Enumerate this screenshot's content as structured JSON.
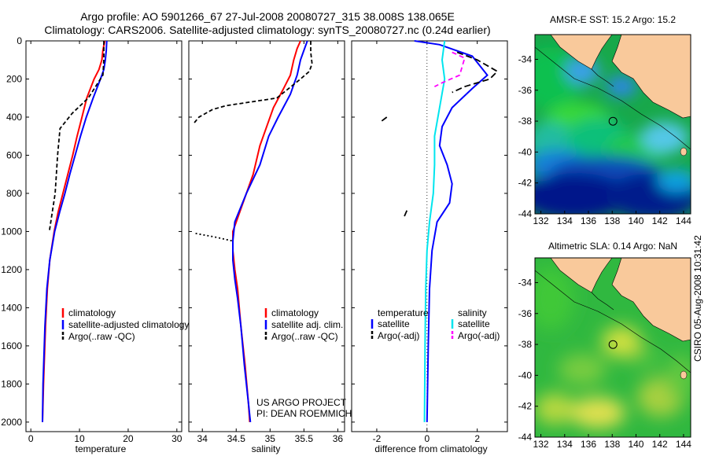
{
  "header": {
    "line1": "Argo profile: AO 5901266_67 27-Jul-2008 20080727_315 38.008S 138.065E",
    "line2": "Climatology: CARS2006. Satellite-adjusted climatology: synTS_20080727.nc (0.24d earlier)"
  },
  "side_label": "CSIRO 05-Aug-2008 10:31:42",
  "colors": {
    "climatology": "#ff0000",
    "satellite": "#0000ff",
    "satellite_diff": "#00e5ee",
    "argo": "#000000",
    "argo_adj": "#ff00ff",
    "land": "#f9c99b"
  },
  "chart_data": [
    {
      "type": "line",
      "xlabel": "temperature",
      "xlim": [
        -1,
        31
      ],
      "ylim": [
        0,
        2050
      ],
      "xticks": [
        0,
        10,
        20,
        30
      ],
      "yticks": [
        0,
        200,
        400,
        600,
        800,
        1000,
        1200,
        1400,
        1600,
        1800,
        2000
      ],
      "legend_position": "lower-right",
      "series": [
        {
          "name": "climatology",
          "color": "#ff0000",
          "dash": "",
          "points": [
            [
              15.2,
              0
            ],
            [
              14.8,
              50
            ],
            [
              14.6,
              100
            ],
            [
              14.0,
              150
            ],
            [
              13.0,
              200
            ],
            [
              11.5,
              300
            ],
            [
              10.5,
              400
            ],
            [
              9.5,
              500
            ],
            [
              8.6,
              600
            ],
            [
              7.6,
              700
            ],
            [
              6.6,
              800
            ],
            [
              5.6,
              900
            ],
            [
              4.8,
              1000
            ],
            [
              3.9,
              1150
            ],
            [
              3.4,
              1300
            ],
            [
              3.0,
              1500
            ],
            [
              2.6,
              1800
            ],
            [
              2.4,
              2000
            ]
          ]
        },
        {
          "name": "satellite-adjusted climatology",
          "color": "#0000ff",
          "dash": "",
          "points": [
            [
              15.6,
              0
            ],
            [
              15.5,
              50
            ],
            [
              15.3,
              100
            ],
            [
              15.0,
              150
            ],
            [
              14.3,
              200
            ],
            [
              12.8,
              300
            ],
            [
              11.4,
              400
            ],
            [
              10.2,
              500
            ],
            [
              9.1,
              600
            ],
            [
              8.0,
              700
            ],
            [
              7.0,
              800
            ],
            [
              5.9,
              900
            ],
            [
              4.9,
              1000
            ],
            [
              3.9,
              1150
            ],
            [
              3.3,
              1300
            ],
            [
              2.9,
              1500
            ],
            [
              2.5,
              1800
            ],
            [
              2.4,
              2000
            ]
          ]
        },
        {
          "name": "Argo(..raw -QC)",
          "color": "#000000",
          "dash": "5,3",
          "points": [
            [
              15.0,
              0
            ],
            [
              15.0,
              100
            ],
            [
              14.8,
              180
            ],
            [
              13.8,
              220
            ],
            [
              11.8,
              300
            ],
            [
              8.5,
              380
            ],
            [
              6.0,
              460
            ],
            [
              5.5,
              600
            ],
            [
              5.0,
              800
            ],
            [
              4.4,
              900
            ],
            [
              3.8,
              1000
            ]
          ]
        }
      ],
      "legend": [
        "climatology",
        "satellite-adjusted climatology",
        "Argo(..raw -QC)"
      ]
    },
    {
      "type": "line",
      "xlabel": "salinity",
      "xlim": [
        33.8,
        36.1
      ],
      "ylim": [
        0,
        2050
      ],
      "xticks": [
        34,
        34.5,
        35,
        35.5,
        36
      ],
      "yticks": [],
      "legend_position": "lower-right",
      "annotation_lines": [
        "US ARGO PROJECT",
        "PI: DEAN ROEMMICH"
      ],
      "series": [
        {
          "name": "climatology",
          "color": "#ff0000",
          "dash": "",
          "points": [
            [
              35.45,
              0
            ],
            [
              35.4,
              40
            ],
            [
              35.35,
              100
            ],
            [
              35.3,
              180
            ],
            [
              35.2,
              250
            ],
            [
              35.05,
              350
            ],
            [
              34.95,
              450
            ],
            [
              34.85,
              550
            ],
            [
              34.75,
              700
            ],
            [
              34.6,
              850
            ],
            [
              34.5,
              950
            ],
            [
              34.45,
              1000
            ],
            [
              34.45,
              1100
            ],
            [
              34.48,
              1200
            ],
            [
              34.52,
              1300
            ],
            [
              34.57,
              1500
            ],
            [
              34.63,
              1700
            ],
            [
              34.68,
              1900
            ],
            [
              34.7,
              2000
            ]
          ]
        },
        {
          "name": "satellite adj. clim.",
          "color": "#0000ff",
          "dash": "",
          "points": [
            [
              35.55,
              0
            ],
            [
              35.5,
              50
            ],
            [
              35.45,
              100
            ],
            [
              35.4,
              180
            ],
            [
              35.3,
              280
            ],
            [
              35.12,
              400
            ],
            [
              34.98,
              500
            ],
            [
              34.85,
              650
            ],
            [
              34.65,
              800
            ],
            [
              34.48,
              950
            ],
            [
              34.45,
              1050
            ],
            [
              34.45,
              1150
            ],
            [
              34.48,
              1250
            ],
            [
              34.52,
              1350
            ],
            [
              34.57,
              1500
            ],
            [
              34.62,
              1700
            ],
            [
              34.68,
              1900
            ],
            [
              34.71,
              2000
            ]
          ]
        },
        {
          "name": "Argo(..raw -QC)",
          "color": "#000000",
          "dash": "5,3",
          "points": [
            [
              35.6,
              0
            ],
            [
              35.6,
              60
            ],
            [
              35.62,
              120
            ],
            [
              35.58,
              160
            ],
            [
              35.45,
              200
            ],
            [
              35.1,
              300
            ],
            [
              34.35,
              340
            ],
            [
              34.15,
              360
            ],
            [
              33.95,
              400
            ],
            [
              33.88,
              430
            ]
          ]
        },
        {
          "name": "",
          "color": "#000000",
          "dash": "2,3",
          "points": [
            [
              33.9,
              1010
            ],
            [
              34.2,
              1030
            ],
            [
              34.45,
              1050
            ]
          ]
        }
      ],
      "legend": [
        "climatology",
        "satellite adj. clim.",
        "Argo(..raw -QC)"
      ]
    },
    {
      "type": "line",
      "xlabel": "difference from climatology",
      "xlim": [
        -3.0,
        3.2
      ],
      "ylim": [
        0,
        2050
      ],
      "xticks": [
        -2,
        0,
        2
      ],
      "yticks": [],
      "legend_position": "lower-center",
      "legend_headers": [
        "temperature",
        "salinity"
      ],
      "series": [
        {
          "name": "satellite",
          "group": "temperature",
          "color": "#0000ff",
          "dash": "",
          "points": [
            [
              -0.5,
              0
            ],
            [
              0.5,
              20
            ],
            [
              1.8,
              80
            ],
            [
              2.4,
              180
            ],
            [
              1.8,
              250
            ],
            [
              1.0,
              350
            ],
            [
              0.6,
              450
            ],
            [
              0.5,
              550
            ],
            [
              0.8,
              650
            ],
            [
              1.0,
              750
            ],
            [
              0.9,
              850
            ],
            [
              0.4,
              950
            ],
            [
              0.2,
              1100
            ],
            [
              0.1,
              1300
            ],
            [
              0.05,
              1600
            ],
            [
              0.0,
              2000
            ]
          ]
        },
        {
          "name": "satellite",
          "group": "salinity",
          "color": "#00e5ee",
          "dash": "",
          "points": [
            [
              0.7,
              0
            ],
            [
              0.6,
              100
            ],
            [
              0.7,
              200
            ],
            [
              0.5,
              350
            ],
            [
              0.3,
              500
            ],
            [
              0.3,
              650
            ],
            [
              0.25,
              800
            ],
            [
              0.1,
              950
            ],
            [
              0.0,
              1100
            ],
            [
              -0.05,
              1300
            ],
            [
              -0.08,
              1600
            ],
            [
              -0.1,
              2000
            ]
          ]
        },
        {
          "name": "Argo(-adj)",
          "group": "temperature",
          "color": "#000000",
          "dash": "8,4",
          "points": [
            [
              1.2,
              60
            ],
            [
              2.0,
              100
            ],
            [
              2.8,
              160
            ],
            [
              2.5,
              200
            ],
            [
              1.5,
              240
            ],
            [
              1.0,
              270
            ]
          ]
        },
        {
          "name": "Argo(-adj)",
          "group": "salinity",
          "color": "#ff00ff",
          "dash": "6,4",
          "points": [
            [
              1.0,
              60
            ],
            [
              1.5,
              90
            ],
            [
              1.3,
              180
            ],
            [
              0.6,
              220
            ],
            [
              0.3,
              240
            ]
          ]
        }
      ],
      "legend": [
        "satellite",
        "Argo(-adj)",
        "satellite",
        "Argo(-adj)"
      ]
    },
    {
      "type": "heatmap",
      "title": "AMSR-E SST: 15.2 Argo: 15.2",
      "xlim": [
        131.5,
        144.6
      ],
      "ylim": [
        -44,
        -32.4
      ],
      "xticks": [
        132,
        134,
        136,
        138,
        140,
        142,
        144
      ],
      "yticks": [
        -34,
        -36,
        -38,
        -40,
        -42,
        -44
      ],
      "marker": [
        138.065,
        -38.008
      ]
    },
    {
      "type": "heatmap",
      "title": "Altimetric SLA: 0.14 Argo: NaN",
      "xlim": [
        131.5,
        144.6
      ],
      "ylim": [
        -44,
        -32.4
      ],
      "xticks": [
        132,
        134,
        136,
        138,
        140,
        142,
        144
      ],
      "yticks": [
        -34,
        -36,
        -38,
        -40,
        -42,
        -44
      ],
      "marker": [
        138.065,
        -38.008
      ]
    }
  ]
}
